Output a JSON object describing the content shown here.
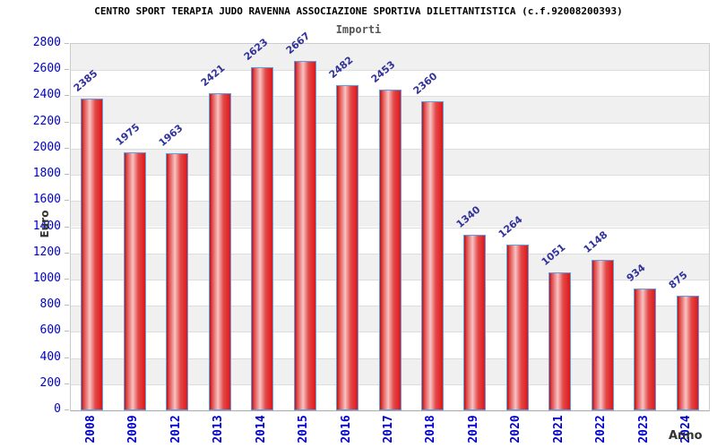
{
  "header": {
    "title": "CENTRO SPORT TERAPIA JUDO RAVENNA ASSOCIAZIONE SPORTIVA DILETTANTISTICA (c.f.92008200393)",
    "subtitle": "Importi"
  },
  "axes": {
    "y_title": "Euro",
    "x_title": "Anno"
  },
  "chart_data": {
    "type": "bar",
    "title": "CENTRO SPORT TERAPIA JUDO RAVENNA ASSOCIAZIONE SPORTIVA DILETTANTISTICA (c.f.92008200393)",
    "subtitle": "Importi",
    "categories": [
      "2008",
      "2009",
      "2012",
      "2013",
      "2014",
      "2015",
      "2016",
      "2017",
      "2018",
      "2019",
      "2020",
      "2021",
      "2022",
      "2023",
      "2024"
    ],
    "values": [
      2385,
      1975,
      1963,
      2421,
      2623,
      2667,
      2482,
      2453,
      2360,
      1340,
      1264,
      1051,
      1148,
      934,
      875
    ],
    "xlabel": "Anno",
    "ylabel": "Euro",
    "ylim": [
      0,
      2800
    ],
    "ytick_step": 200,
    "grid": "horizontal-bands-alternating",
    "legend": "none",
    "bar_labels_rotated_deg": -40,
    "x_labels_rotated_deg": -90
  },
  "colors": {
    "bar_border": "#58a0e8",
    "bar_dark": "#b81212",
    "bar_mid": "#e24a4a",
    "bar_light": "#f8c3c3",
    "bar_solid": "#e01616",
    "value_label": "#32329b",
    "axis_number": "#0000cd",
    "band_gray": "#f0f0f0",
    "band_white": "#ffffff",
    "grid_line": "#dcdcdc"
  }
}
